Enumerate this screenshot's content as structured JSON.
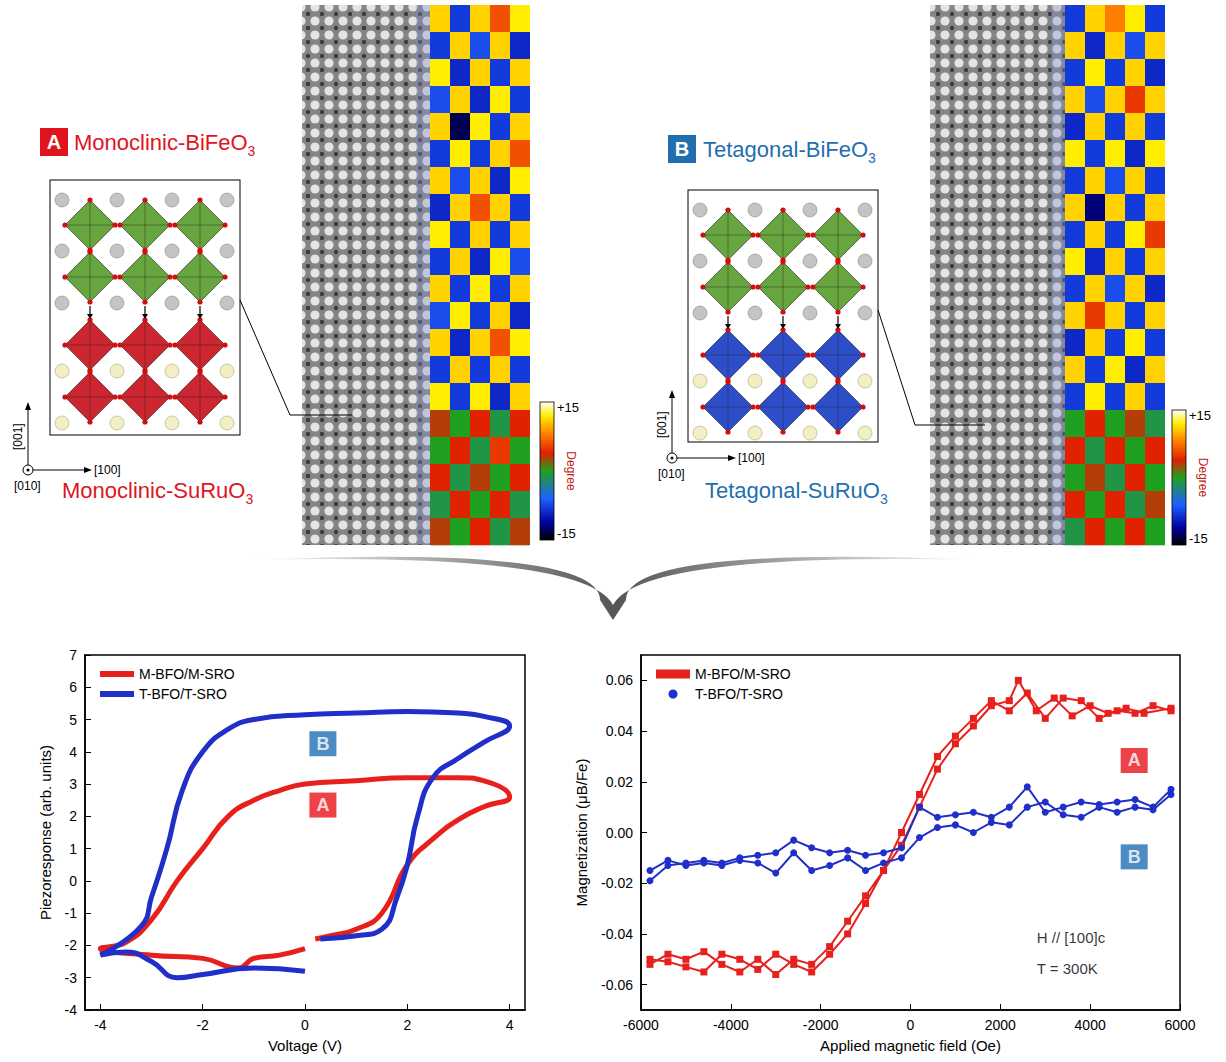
{
  "panels": [
    {
      "letter": "A",
      "title": "Monoclinic-BiFeO3",
      "substrate": "Monoclinic-SuRuO3",
      "color": "#e0141e",
      "film_color": "#5a9e2f",
      "substrate_color": "#c8141e",
      "axes": [
        "[001]",
        "[100]",
        "[010]"
      ],
      "cells": [
        [
          11,
          -8,
          11,
          6,
          12
        ],
        [
          -8,
          11,
          -7,
          11,
          -9
        ],
        [
          12,
          -9,
          11,
          -8,
          11
        ],
        [
          -7,
          11,
          -9,
          12,
          -8
        ],
        [
          11,
          -13,
          12,
          -8,
          11
        ],
        [
          -8,
          12,
          -8,
          11,
          6
        ],
        [
          11,
          -7,
          11,
          -9,
          12
        ],
        [
          -9,
          11,
          6,
          11,
          -8
        ],
        [
          12,
          -8,
          11,
          -8,
          11
        ],
        [
          -8,
          11,
          -9,
          12,
          -7
        ],
        [
          11,
          -8,
          12,
          -8,
          11
        ],
        [
          -7,
          12,
          -8,
          11,
          -9
        ],
        [
          11,
          -9,
          11,
          6,
          12
        ],
        [
          -8,
          11,
          -8,
          11,
          -8
        ],
        [
          12,
          -8,
          12,
          -9,
          11
        ],
        [
          3,
          0,
          4,
          -1,
          4
        ],
        [
          0,
          4,
          -1,
          5,
          0
        ],
        [
          4,
          -1,
          3,
          0,
          4
        ],
        [
          -1,
          4,
          0,
          4,
          -1
        ],
        [
          3,
          0,
          4,
          -1,
          3
        ]
      ],
      "colorbar": {
        "range": [
          -15,
          15
        ],
        "ticks": [
          {
            "value": 15,
            "label": "+15"
          },
          -15
        ],
        "label": "Degree"
      }
    },
    {
      "letter": "B",
      "title": "Tetagonal-BiFeO3",
      "substrate": "Tetagonal-SuRuO3",
      "color": "#1f6fb0",
      "film_color": "#5a9e2f",
      "substrate_color": "#1c3fc4",
      "axes": [
        "[001]",
        "[100]",
        "[010]"
      ],
      "cells": [
        [
          -8,
          11,
          8,
          12,
          -8
        ],
        [
          11,
          -9,
          11,
          -7,
          11
        ],
        [
          -8,
          12,
          -8,
          11,
          -9
        ],
        [
          11,
          -7,
          11,
          5,
          11
        ],
        [
          -9,
          11,
          -8,
          11,
          -8
        ],
        [
          12,
          -8,
          12,
          -9,
          12
        ],
        [
          -8,
          11,
          -7,
          11,
          -8
        ],
        [
          11,
          -12,
          11,
          -8,
          11
        ],
        [
          -8,
          11,
          -8,
          12,
          5
        ],
        [
          12,
          -9,
          11,
          -8,
          11
        ],
        [
          -8,
          11,
          -7,
          11,
          -9
        ],
        [
          11,
          5,
          11,
          -8,
          11
        ],
        [
          -9,
          11,
          -8,
          12,
          -8
        ],
        [
          11,
          -8,
          12,
          -9,
          11
        ],
        [
          -8,
          12,
          -8,
          11,
          -8
        ],
        [
          0,
          4,
          0,
          3,
          -1
        ],
        [
          4,
          -1,
          4,
          0,
          4
        ],
        [
          0,
          3,
          -1,
          4,
          0
        ],
        [
          4,
          0,
          4,
          -1,
          3
        ],
        [
          -1,
          4,
          0,
          4,
          0
        ]
      ],
      "colorbar": {
        "range": [
          -15,
          15
        ],
        "ticks": [
          {
            "value": 15,
            "label": "+15"
          },
          -15
        ],
        "label": "Degree"
      }
    }
  ],
  "chart_data": [
    {
      "type": "line",
      "xlabel": "Voltage (V)",
      "ylabel": "Piezoresponse (arb. units)",
      "xlim": [
        -4.3,
        4.3
      ],
      "xticks": [
        -4,
        -2,
        0,
        2,
        4
      ],
      "ylim": [
        -4,
        7
      ],
      "yticks": [
        -4,
        -3,
        -2,
        -1,
        0,
        1,
        2,
        3,
        4,
        5,
        6,
        7
      ],
      "grid": false,
      "legend": "upper left",
      "series": [
        {
          "name": "M-BFO/M-SRO",
          "color": "#e8201c",
          "line_style": "solid",
          "x": [
            0,
            -0.5,
            -1,
            -1.3,
            -2,
            -3,
            -4,
            -3.5,
            -3,
            -2.5,
            -2,
            -1.5,
            -1,
            -0.5,
            0,
            1,
            2,
            3,
            3.5,
            4,
            3.5,
            3,
            2.5,
            2,
            1.5,
            1,
            0.5,
            0.2
          ],
          "values": [
            -2.1,
            -2.3,
            -2.4,
            -2.7,
            -2.4,
            -2.3,
            -2.1,
            -1.9,
            -1.2,
            0,
            1,
            2,
            2.5,
            2.8,
            3,
            3.1,
            3.2,
            3.2,
            3.1,
            2.6,
            2.3,
            1.9,
            1.3,
            0.5,
            -1,
            -1.5,
            -1.7,
            -1.8
          ]
        },
        {
          "name": "T-BFO/T-SRO",
          "color": "#1f2fc8",
          "line_style": "solid",
          "x": [
            0,
            -1,
            -2,
            -2.5,
            -3,
            -3.5,
            -4,
            -3.2,
            -3,
            -2.7,
            -2.4,
            -2,
            -1.5,
            -1,
            0,
            1,
            2,
            3,
            3.5,
            4,
            3.5,
            3,
            2.5,
            2.2,
            2,
            1.8,
            1.5,
            1,
            0.3
          ],
          "values": [
            -2.8,
            -2.7,
            -2.9,
            -3.0,
            -2.5,
            -2.2,
            -2.3,
            -1.4,
            -0.5,
            1,
            2.8,
            4,
            4.7,
            5,
            5.15,
            5.2,
            5.25,
            5.2,
            5.1,
            4.8,
            4.3,
            3.8,
            3.2,
            2,
            0.5,
            -0.5,
            -1.5,
            -1.7,
            -1.8
          ]
        }
      ],
      "annotations": [
        {
          "text": "B",
          "x": 0.35,
          "y": 4.25,
          "color": "#1f6fb0"
        },
        {
          "text": "A",
          "x": 0.35,
          "y": 2.35,
          "color": "#e8141a"
        }
      ]
    },
    {
      "type": "line",
      "xlabel": "Applied magnetic field (Oe)",
      "ylabel": "Magnetization (μB/Fe)",
      "xlim": [
        -6000,
        6000
      ],
      "xticks": [
        -6000,
        -4000,
        -2000,
        0,
        2000,
        4000,
        6000
      ],
      "ylim": [
        -0.07,
        0.07
      ],
      "yticks": [
        -0.06,
        -0.04,
        -0.02,
        {
          "value": 0,
          "label": "0.00"
        },
        0.02,
        0.04,
        0.06
      ],
      "grid": false,
      "legend": "upper left",
      "series": [
        {
          "name": "M-BFO/M-SRO",
          "color": "#e8201c",
          "marker": "square",
          "line_style": "solid",
          "x": [
            -5800,
            -5400,
            -5000,
            -4600,
            -4200,
            -3800,
            -3400,
            -3000,
            -2600,
            -2200,
            -1800,
            -1400,
            -1000,
            -600,
            -200,
            200,
            600,
            1000,
            1400,
            1800,
            2200,
            2400,
            2800,
            3200,
            3600,
            4000,
            4400,
            4800,
            5200,
            5800,
            5800,
            5400,
            5000,
            4600,
            4200,
            3800,
            3400,
            3000,
            2600,
            2200,
            1800,
            1400,
            1000,
            600,
            200,
            -200,
            -600,
            -1000,
            -1400,
            -1800,
            -2200,
            -2600,
            -3000,
            -3400,
            -3800,
            -4200,
            -4600,
            -5000,
            -5400,
            -5800
          ],
          "values": [
            -0.052,
            -0.048,
            -0.05,
            -0.047,
            -0.052,
            -0.055,
            -0.05,
            -0.056,
            -0.05,
            -0.052,
            -0.045,
            -0.035,
            -0.025,
            -0.015,
            -0.005,
            0.01,
            0.025,
            0.035,
            0.042,
            0.05,
            0.052,
            0.06,
            0.048,
            0.053,
            0.046,
            0.05,
            0.047,
            0.049,
            0.047,
            0.049,
            0.048,
            0.05,
            0.047,
            0.048,
            0.045,
            0.052,
            0.053,
            0.045,
            0.055,
            0.048,
            0.052,
            0.045,
            0.038,
            0.03,
            0.015,
            0.0,
            -0.015,
            -0.028,
            -0.04,
            -0.048,
            -0.055,
            -0.052,
            -0.048,
            -0.054,
            -0.05,
            -0.048,
            -0.055,
            -0.053,
            -0.051,
            -0.05
          ]
        },
        {
          "name": "T-BFO/T-SRO",
          "color": "#1f2fc8",
          "marker": "circle",
          "line_style": "solid",
          "x": [
            -5800,
            -5400,
            -5000,
            -4600,
            -4200,
            -3800,
            -3400,
            -3000,
            -2600,
            -2200,
            -1800,
            -1400,
            -1000,
            -600,
            -200,
            200,
            600,
            1000,
            1400,
            1800,
            2200,
            2600,
            3000,
            3400,
            3800,
            4200,
            4600,
            5000,
            5400,
            5800,
            5800,
            5400,
            5000,
            4600,
            4200,
            3800,
            3400,
            3000,
            2600,
            2200,
            1800,
            1400,
            1000,
            600,
            200,
            -200,
            -600,
            -1000,
            -1400,
            -1800,
            -2200,
            -2600,
            -3000,
            -3400,
            -3800,
            -4200,
            -4600,
            -5000,
            -5400,
            -5800
          ],
          "values": [
            -0.019,
            -0.013,
            -0.012,
            -0.011,
            -0.012,
            -0.01,
            -0.009,
            -0.008,
            -0.003,
            -0.006,
            -0.008,
            -0.007,
            -0.009,
            -0.008,
            -0.006,
            0.01,
            0.006,
            0.007,
            0.008,
            0.006,
            0.01,
            0.018,
            0.008,
            0.01,
            0.012,
            0.011,
            0.012,
            0.013,
            0.01,
            0.017,
            0.015,
            0.009,
            0.01,
            0.008,
            0.01,
            0.006,
            0.007,
            0.012,
            0.01,
            0.003,
            0.004,
            0.0,
            0.003,
            0.002,
            -0.002,
            -0.01,
            -0.012,
            -0.015,
            -0.01,
            -0.013,
            -0.015,
            -0.008,
            -0.016,
            -0.012,
            -0.011,
            -0.013,
            -0.012,
            -0.013,
            -0.011,
            -0.015
          ]
        }
      ],
      "annotations": [
        {
          "text": "A",
          "x": 4980,
          "y": 0.0284,
          "color": "#e8141a"
        },
        {
          "text": "B",
          "x": 4980,
          "y": -0.0096,
          "color": "#1f6fb0"
        },
        {
          "text": "H // [100]c",
          "x": 2700,
          "y": -0.0416
        },
        {
          "text": "T = 300K",
          "x": 2700,
          "y": -0.0536
        }
      ]
    }
  ]
}
